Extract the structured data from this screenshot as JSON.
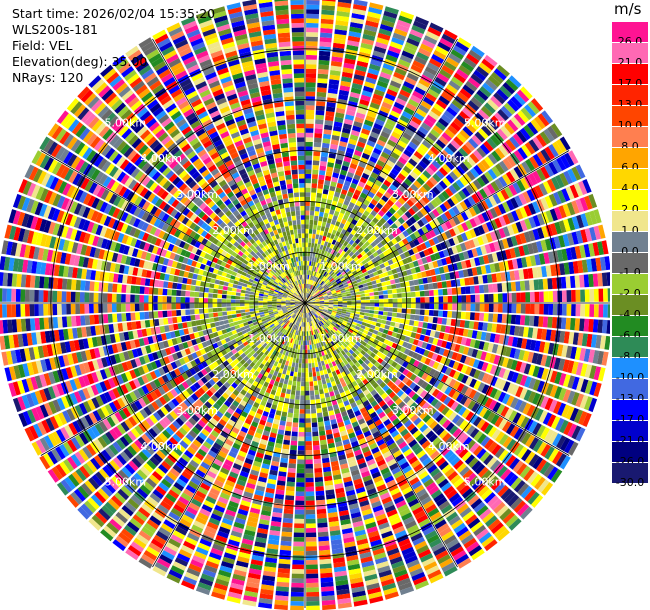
{
  "info": {
    "start_time": "Start time: 2026/02/04 15:35:20",
    "instrument": "WLS200s-181",
    "field": "Field: VEL",
    "elevation": "Elevation(deg): 35.00",
    "nrays": "NRays: 120"
  },
  "colorbar": {
    "unit": "m/s",
    "levels": [
      "26.0",
      "21.0",
      "17.0",
      "13.0",
      "10.0",
      "8.0",
      "6.0",
      "4.0",
      "2.0",
      "1.0",
      "0.0",
      "-1.0",
      "-2.0",
      "-4.0",
      "-6.0",
      "-8.0",
      "-10.0",
      "-13.0",
      "-17.0",
      "-21.0",
      "-26.0",
      "-30.0"
    ],
    "colors": [
      "#ff1493",
      "#ff69b4",
      "#ff0000",
      "#ff2400",
      "#ff4500",
      "#ff7f50",
      "#ffa500",
      "#ffd700",
      "#ffff00",
      "#f0e68c",
      "#708090",
      "#696969",
      "#9acd32",
      "#6b8e23",
      "#228b22",
      "#2e8b57",
      "#1e90ff",
      "#4169e1",
      "#0000ff",
      "#0000cd",
      "#000080",
      "#191970"
    ]
  },
  "chart_data": {
    "type": "ppi",
    "field": "VEL",
    "unit": "m/s",
    "nrays": 120,
    "elevation_deg": 35.0,
    "max_range_km": 6.0,
    "range_ring_labels": [
      "1.00km",
      "2.00km",
      "3.00km",
      "4.00km",
      "5.00km"
    ],
    "range_rings_km": [
      1,
      2,
      3,
      4,
      5
    ],
    "pattern_zones": [
      {
        "range_km": [
          0,
          0.5
        ],
        "dominant": [
          "0.0",
          "-1.0",
          "1.0",
          "2.0"
        ]
      },
      {
        "range_km": [
          0.5,
          2.2
        ],
        "dominant": [
          "2.0",
          "-2.0",
          "-4.0",
          "0.0"
        ]
      },
      {
        "range_km": [
          2.2,
          6.0
        ],
        "dominant": "all"
      }
    ]
  }
}
